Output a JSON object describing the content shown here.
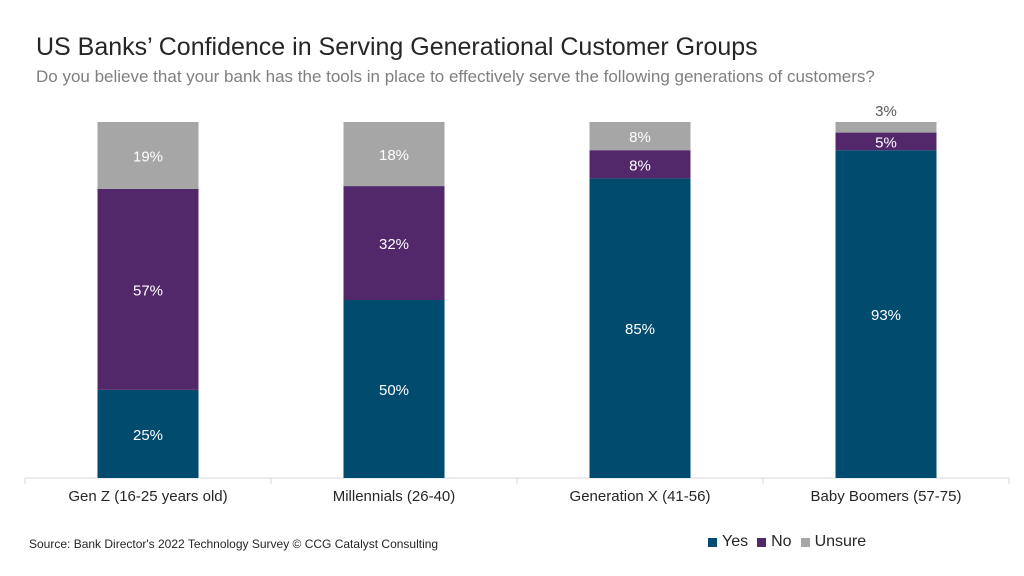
{
  "title": "US Banks’ Confidence in Serving Generational Customer Groups",
  "subtitle": "Do you believe that your bank has the tools in place to effectively serve the following generations of customers?",
  "source": "Source: Bank Director's 2022 Technology Survey © CCG Catalyst Consulting",
  "colors": {
    "yes": "#004b6e",
    "no": "#53286b",
    "unsure": "#a6a6a6",
    "label_on_dark": "#ffffff",
    "label_on_light": "#ffffff",
    "label_outside": "#595959",
    "axis": "#d9d9d9"
  },
  "chart_data": {
    "type": "bar",
    "stacked": true,
    "percent_stacked": true,
    "categories": [
      "Gen Z (16-25 years old)",
      "Millennials (26-40)",
      "Generation X (41-56)",
      "Baby Boomers (57-75)"
    ],
    "series": [
      {
        "name": "Yes",
        "values": [
          25,
          50,
          85,
          93
        ],
        "labels": [
          "25%",
          "50%",
          "85%",
          "93%"
        ]
      },
      {
        "name": "No",
        "values": [
          57,
          32,
          8,
          5
        ],
        "labels": [
          "57%",
          "32%",
          "8%",
          "5%"
        ]
      },
      {
        "name": "Unsure",
        "values": [
          19,
          18,
          8,
          3
        ],
        "labels": [
          "19%",
          "18%",
          "8%",
          "3%"
        ]
      }
    ],
    "ylim": [
      0,
      100
    ],
    "grid": false,
    "legend_position": "bottom-right"
  }
}
